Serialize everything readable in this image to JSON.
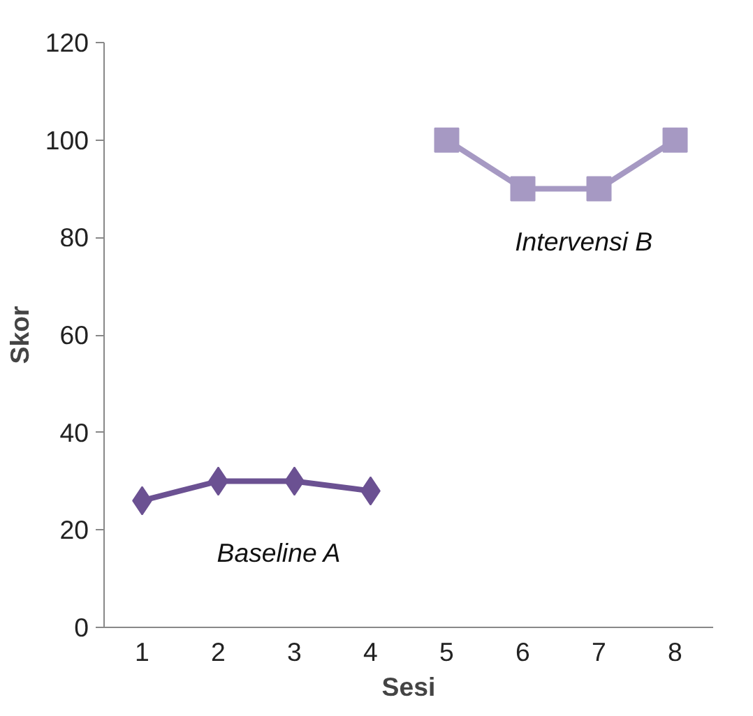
{
  "chart_data": {
    "type": "line",
    "xlabel": "Sesi",
    "ylabel": "Skor",
    "categories": [
      "1",
      "2",
      "3",
      "4",
      "5",
      "6",
      "7",
      "8"
    ],
    "series": [
      {
        "name": "Baseline A",
        "color": "#6b5192",
        "marker": "diamond",
        "values": [
          26,
          30,
          30,
          28,
          null,
          null,
          null,
          null
        ]
      },
      {
        "name": "Intervensi B",
        "color": "#a699c3",
        "marker": "square",
        "values": [
          null,
          null,
          null,
          null,
          100,
          90,
          90,
          100
        ]
      }
    ],
    "ylim": [
      0,
      120
    ],
    "yticks": [
      0,
      20,
      40,
      60,
      80,
      100,
      120
    ],
    "grid": false,
    "legend": false,
    "line_style": "solid"
  }
}
